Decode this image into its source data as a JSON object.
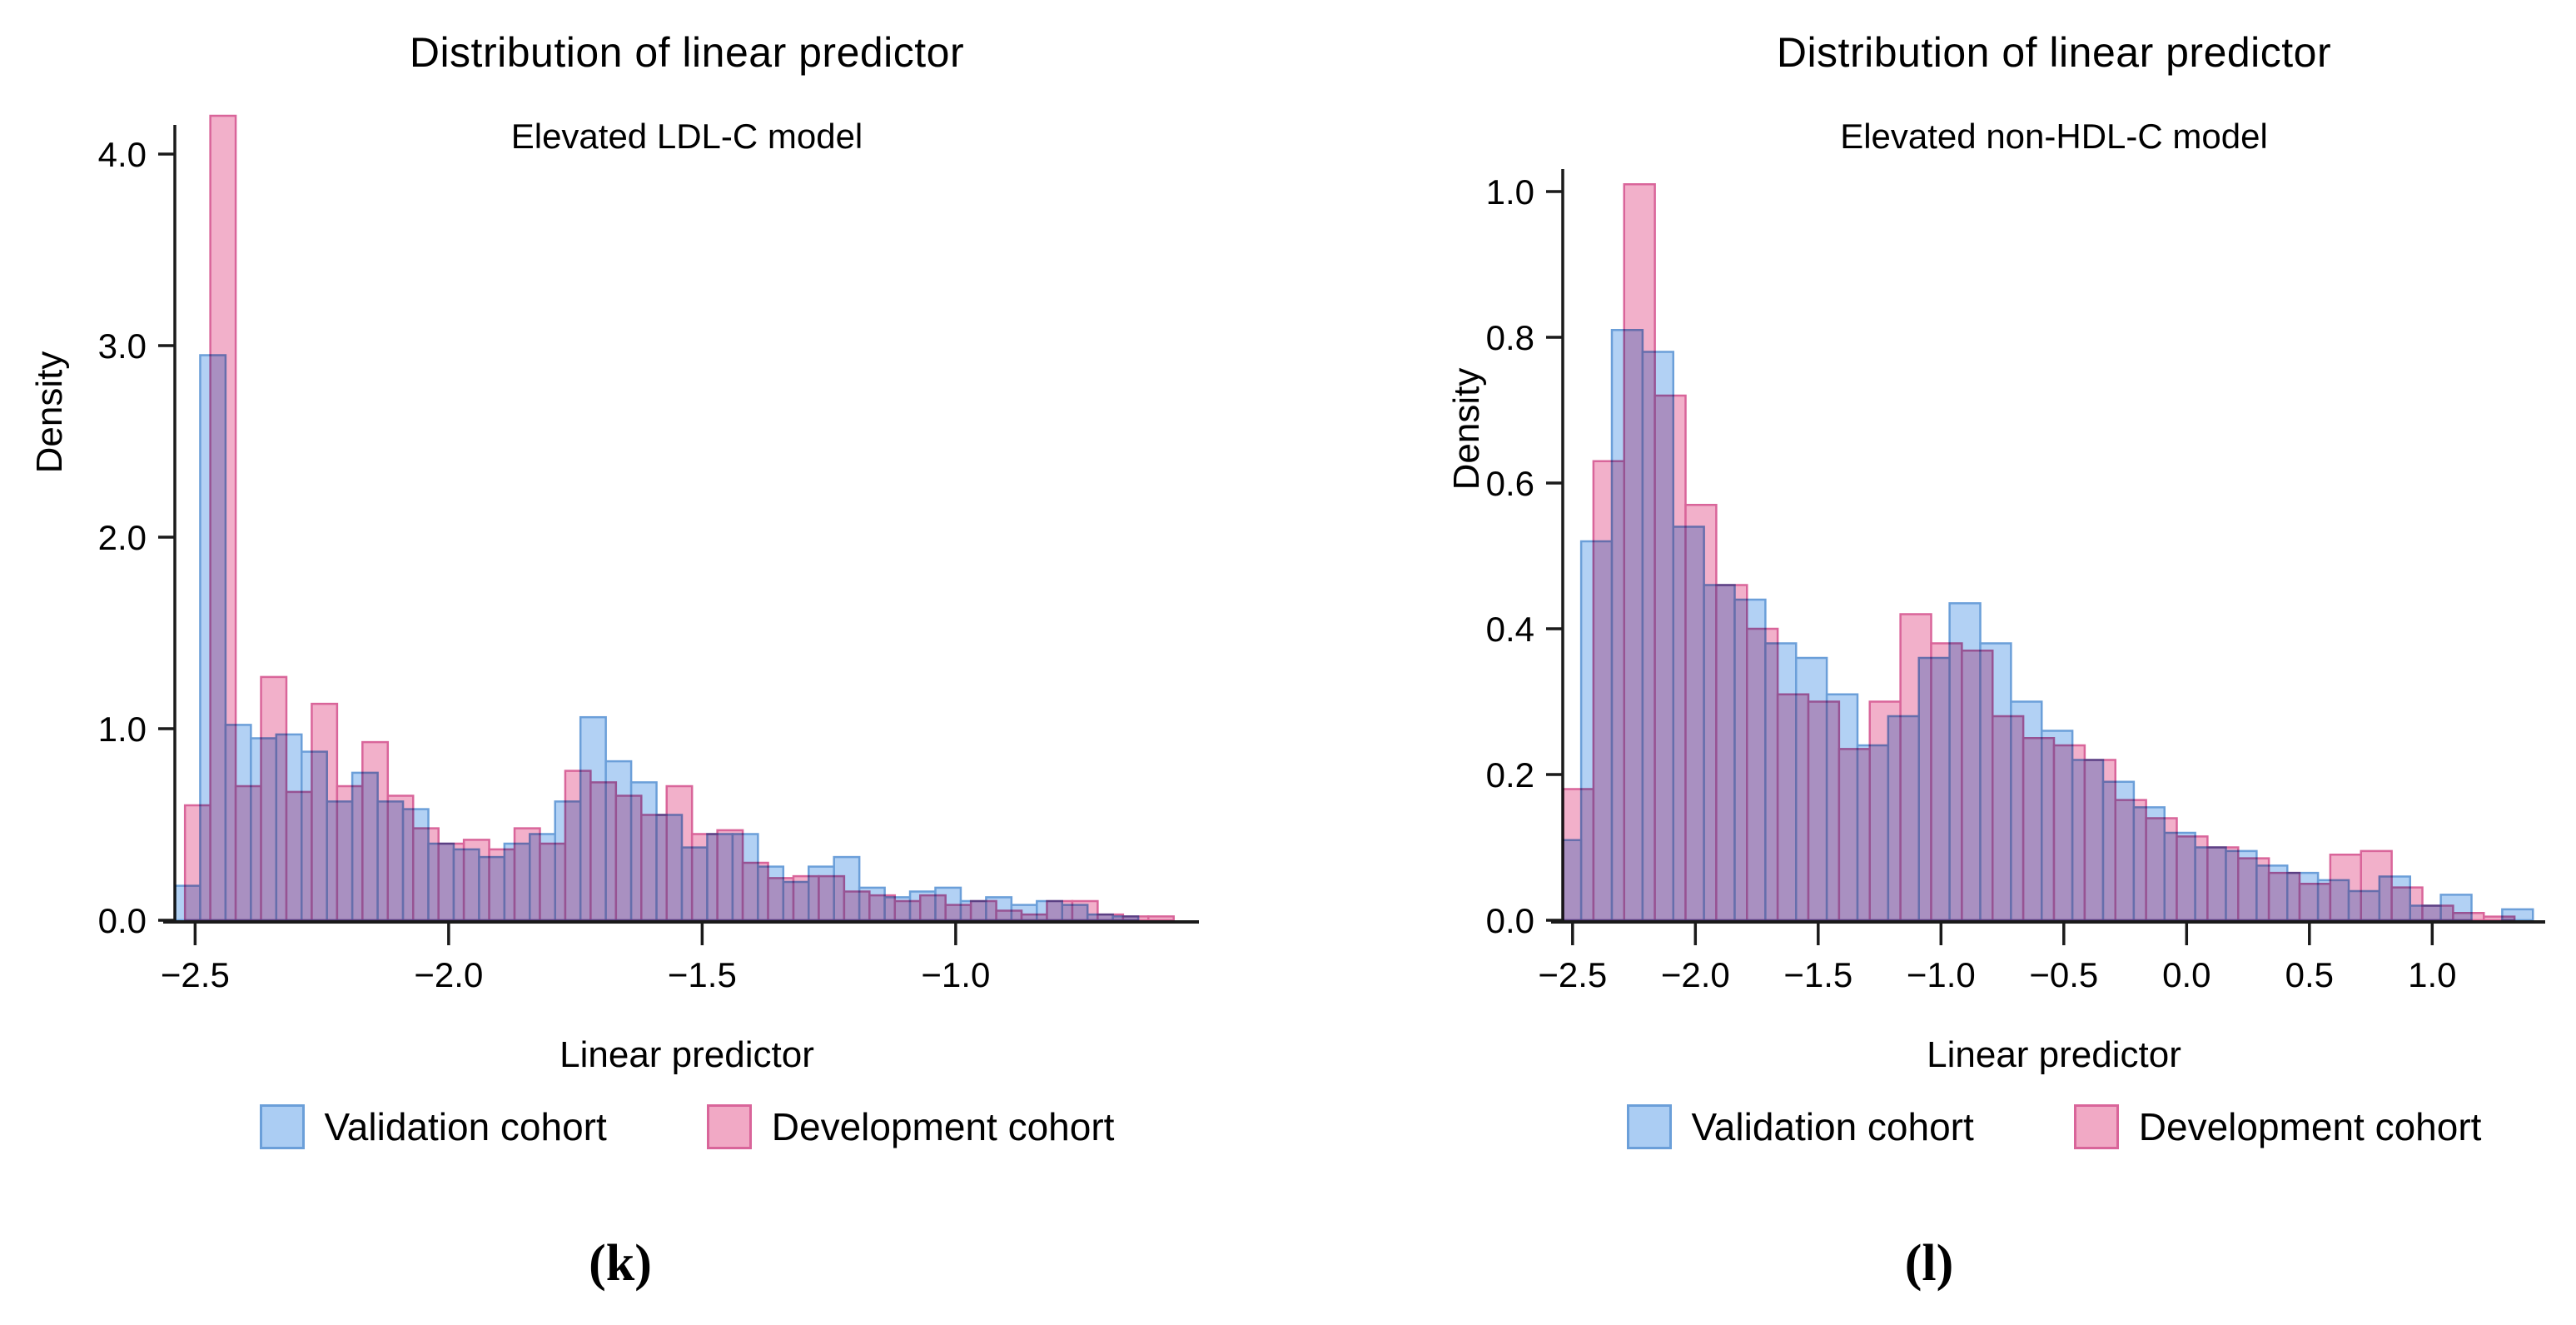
{
  "panels": [
    {
      "caption": "(k)"
    },
    {
      "caption": "(l)"
    }
  ],
  "colors": {
    "validation_fill": "#ABCDF3",
    "validation_stroke": "#6B9FD9",
    "development_fill": "#F1A9C5",
    "development_stroke": "#D9659A",
    "axis": "#1a1a1a"
  },
  "chart_data": [
    {
      "type": "bar",
      "subtype": "overlaid-histogram",
      "title": "Distribution of linear predictor",
      "subtitle": "Elevated LDL-C model",
      "xlabel": "Linear predictor",
      "ylabel": "Density",
      "xlim": [
        -2.54,
        -0.52
      ],
      "ylim": [
        0,
        4.37
      ],
      "xticks": [
        -2.5,
        -2.0,
        -1.5,
        -1.0
      ],
      "yticks": [
        0.0,
        1.0,
        2.0,
        3.0,
        4.0
      ],
      "grid": false,
      "legend_position": "bottom",
      "series": [
        {
          "name": "Validation cohort",
          "bin_start": -2.54,
          "bin_width": 0.05,
          "heights": [
            0.18,
            2.95,
            1.02,
            0.95,
            0.97,
            0.88,
            0.62,
            0.77,
            0.62,
            0.58,
            0.4,
            0.37,
            0.33,
            0.4,
            0.45,
            0.62,
            1.06,
            0.83,
            0.72,
            0.55,
            0.38,
            0.45,
            0.45,
            0.28,
            0.2,
            0.28,
            0.33,
            0.17,
            0.12,
            0.15,
            0.17,
            0.1,
            0.12,
            0.08,
            0.1,
            0.08,
            0.03,
            0.02
          ]
        },
        {
          "name": "Development cohort",
          "bin_start": -2.52,
          "bin_width": 0.05,
          "heights": [
            0.6,
            4.2,
            0.7,
            1.27,
            0.67,
            1.13,
            0.7,
            0.93,
            0.65,
            0.48,
            0.4,
            0.42,
            0.37,
            0.48,
            0.4,
            0.78,
            0.72,
            0.65,
            0.55,
            0.7,
            0.45,
            0.47,
            0.3,
            0.22,
            0.23,
            0.23,
            0.15,
            0.13,
            0.1,
            0.13,
            0.08,
            0.1,
            0.05,
            0.03,
            0.1,
            0.1,
            0.03,
            0.02,
            0.02
          ]
        }
      ]
    },
    {
      "type": "bar",
      "subtype": "overlaid-histogram",
      "title": "Distribution of linear predictor",
      "subtitle": "Elevated non-HDL-C model",
      "xlabel": "Linear predictor",
      "ylabel": "Density",
      "xlim": [
        -2.54,
        1.46
      ],
      "ylim": [
        0,
        1.03
      ],
      "xticks": [
        -2.5,
        -2.0,
        -1.5,
        -1.0,
        -0.5,
        0.0,
        0.5,
        1.0
      ],
      "yticks": [
        0.0,
        0.2,
        0.4,
        0.6,
        0.8,
        1.0
      ],
      "grid": false,
      "legend_position": "bottom",
      "series": [
        {
          "name": "Validation cohort",
          "bin_start": -2.59,
          "bin_width": 0.125,
          "heights": [
            0.11,
            0.52,
            0.81,
            0.78,
            0.54,
            0.46,
            0.44,
            0.38,
            0.36,
            0.31,
            0.24,
            0.28,
            0.36,
            0.435,
            0.38,
            0.3,
            0.26,
            0.22,
            0.19,
            0.155,
            0.12,
            0.1,
            0.095,
            0.075,
            0.065,
            0.055,
            0.04,
            0.06,
            0.02,
            0.035,
            0.0,
            0.015
          ]
        },
        {
          "name": "Development cohort",
          "bin_start": -2.665,
          "bin_width": 0.125,
          "heights": [
            0.03,
            0.18,
            0.63,
            1.01,
            0.72,
            0.57,
            0.46,
            0.4,
            0.31,
            0.3,
            0.235,
            0.3,
            0.42,
            0.38,
            0.37,
            0.28,
            0.25,
            0.24,
            0.22,
            0.165,
            0.14,
            0.115,
            0.1,
            0.085,
            0.065,
            0.05,
            0.09,
            0.095,
            0.045,
            0.02,
            0.01,
            0.005
          ]
        }
      ]
    }
  ]
}
